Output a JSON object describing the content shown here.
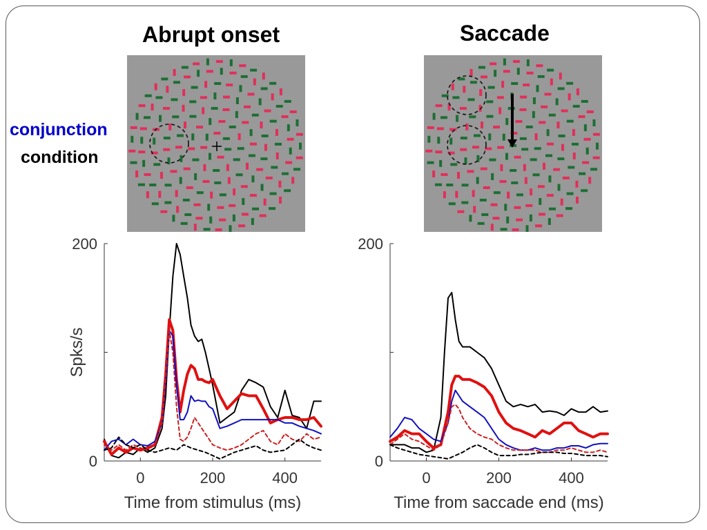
{
  "panels": [
    {
      "title": "Abrupt onset"
    },
    {
      "title": "Saccade"
    }
  ],
  "condition_label": {
    "word1": "conjunction",
    "word2": "condition",
    "word1_color": "#0000cc"
  },
  "stimulus": {
    "background": "#999999",
    "color_a": "#e0305a",
    "color_b": "#1e6e34",
    "outline": "#111111"
  },
  "chart_data": [
    {
      "type": "line",
      "title": "Abrupt onset",
      "xlabel": "Time from stimulus (ms)",
      "ylabel": "Spks/s",
      "xlim": [
        -100,
        500
      ],
      "ylim": [
        0,
        200
      ],
      "xticks": [
        0,
        200,
        400
      ],
      "yticks": [
        0,
        200
      ],
      "series": [
        {
          "color": "#000000",
          "style": "solid-thin",
          "x": [
            -100,
            -80,
            -60,
            -40,
            -20,
            0,
            20,
            40,
            60,
            70,
            80,
            90,
            100,
            110,
            120,
            130,
            140,
            150,
            160,
            170,
            180,
            190,
            200,
            220,
            240,
            260,
            280,
            300,
            320,
            340,
            360,
            380,
            400,
            420,
            440,
            460,
            480,
            500
          ],
          "y": [
            20,
            5,
            3,
            8,
            6,
            12,
            8,
            12,
            30,
            60,
            120,
            170,
            200,
            190,
            170,
            150,
            125,
            115,
            110,
            112,
            100,
            85,
            70,
            35,
            40,
            45,
            65,
            75,
            72,
            68,
            50,
            40,
            65,
            42,
            40,
            30,
            55,
            55
          ]
        },
        {
          "color": "#e01010",
          "style": "solid-thick",
          "x": [
            -100,
            -80,
            -60,
            -40,
            -20,
            0,
            20,
            40,
            60,
            70,
            80,
            90,
            100,
            110,
            120,
            130,
            140,
            150,
            160,
            170,
            180,
            190,
            200,
            220,
            240,
            260,
            280,
            300,
            320,
            340,
            360,
            380,
            400,
            420,
            440,
            460,
            480,
            500
          ],
          "y": [
            18,
            6,
            12,
            8,
            12,
            10,
            12,
            15,
            40,
            80,
            130,
            120,
            75,
            45,
            65,
            80,
            88,
            85,
            75,
            75,
            73,
            72,
            75,
            60,
            48,
            55,
            62,
            60,
            60,
            48,
            35,
            38,
            40,
            40,
            38,
            38,
            40,
            32
          ]
        },
        {
          "color": "#1010c0",
          "style": "solid-thin",
          "x": [
            -100,
            -80,
            -60,
            -40,
            -20,
            0,
            20,
            40,
            60,
            70,
            80,
            90,
            100,
            110,
            120,
            130,
            140,
            150,
            160,
            170,
            180,
            190,
            200,
            220,
            240,
            260,
            280,
            300,
            320,
            340,
            360,
            380,
            400,
            420,
            440,
            460,
            480,
            500
          ],
          "y": [
            10,
            18,
            20,
            15,
            20,
            15,
            14,
            18,
            35,
            75,
            120,
            115,
            70,
            38,
            38,
            45,
            60,
            55,
            56,
            55,
            55,
            50,
            48,
            30,
            32,
            35,
            38,
            38,
            38,
            38,
            38,
            38,
            35,
            35,
            32,
            30,
            28,
            25
          ]
        },
        {
          "color": "#cc2020",
          "style": "dashed",
          "x": [
            -100,
            -80,
            -60,
            -40,
            -20,
            0,
            20,
            40,
            60,
            70,
            80,
            90,
            100,
            110,
            120,
            130,
            140,
            150,
            160,
            170,
            180,
            190,
            200,
            220,
            240,
            260,
            280,
            300,
            320,
            340,
            360,
            380,
            400,
            420,
            440,
            460,
            480,
            500
          ],
          "y": [
            15,
            10,
            15,
            10,
            15,
            12,
            10,
            15,
            35,
            80,
            120,
            100,
            50,
            20,
            18,
            22,
            30,
            40,
            35,
            30,
            25,
            20,
            15,
            12,
            10,
            12,
            15,
            20,
            25,
            28,
            18,
            15,
            25,
            20,
            18,
            25,
            20,
            22
          ]
        },
        {
          "color": "#000000",
          "style": "dashed",
          "x": [
            -100,
            -80,
            -60,
            -40,
            -20,
            0,
            20,
            40,
            60,
            80,
            100,
            120,
            140,
            160,
            180,
            200,
            220,
            240,
            260,
            280,
            300,
            320,
            340,
            360,
            380,
            400,
            420,
            440,
            460,
            480,
            500
          ],
          "y": [
            10,
            12,
            22,
            15,
            12,
            15,
            10,
            8,
            10,
            12,
            10,
            15,
            12,
            10,
            8,
            5,
            2,
            5,
            8,
            10,
            12,
            14,
            10,
            8,
            9,
            10,
            15,
            20,
            15,
            12,
            10
          ]
        }
      ]
    },
    {
      "type": "line",
      "title": "Saccade",
      "xlabel": "Time from saccade end (ms)",
      "ylabel": "",
      "xlim": [
        -100,
        500
      ],
      "ylim": [
        0,
        200
      ],
      "xticks": [
        0,
        200,
        400
      ],
      "yticks": [
        0,
        200
      ],
      "series": [
        {
          "color": "#000000",
          "style": "solid-thin",
          "x": [
            -100,
            -80,
            -60,
            -40,
            -20,
            0,
            20,
            40,
            50,
            60,
            70,
            80,
            90,
            100,
            120,
            140,
            160,
            180,
            200,
            220,
            240,
            260,
            280,
            300,
            320,
            340,
            360,
            380,
            400,
            420,
            440,
            460,
            480,
            500
          ],
          "y": [
            15,
            15,
            15,
            12,
            12,
            8,
            10,
            40,
            100,
            150,
            155,
            130,
            110,
            105,
            105,
            100,
            95,
            85,
            70,
            55,
            50,
            52,
            50,
            52,
            45,
            46,
            45,
            42,
            48,
            45,
            45,
            50,
            45,
            46
          ]
        },
        {
          "color": "#e01010",
          "style": "solid-thick",
          "x": [
            -100,
            -80,
            -60,
            -40,
            -20,
            0,
            20,
            40,
            60,
            70,
            80,
            90,
            100,
            120,
            140,
            160,
            180,
            200,
            220,
            240,
            260,
            280,
            300,
            320,
            340,
            360,
            380,
            400,
            420,
            440,
            460,
            480,
            500
          ],
          "y": [
            18,
            22,
            28,
            25,
            25,
            18,
            12,
            15,
            45,
            70,
            78,
            78,
            75,
            75,
            72,
            68,
            60,
            45,
            35,
            30,
            28,
            25,
            22,
            28,
            25,
            30,
            35,
            35,
            28,
            25,
            22,
            25,
            25
          ]
        },
        {
          "color": "#1010c0",
          "style": "solid-thin",
          "x": [
            -100,
            -80,
            -60,
            -40,
            -20,
            0,
            20,
            40,
            60,
            70,
            80,
            90,
            100,
            120,
            140,
            160,
            180,
            200,
            220,
            240,
            260,
            280,
            300,
            320,
            340,
            360,
            380,
            400,
            420,
            440,
            460,
            480,
            500
          ],
          "y": [
            22,
            30,
            40,
            38,
            30,
            25,
            20,
            18,
            35,
            55,
            65,
            60,
            55,
            50,
            45,
            40,
            30,
            20,
            15,
            12,
            10,
            10,
            12,
            10,
            10,
            12,
            12,
            14,
            14,
            12,
            15,
            16,
            16
          ]
        },
        {
          "color": "#cc2020",
          "style": "dashed",
          "x": [
            -100,
            -80,
            -60,
            -40,
            -20,
            0,
            20,
            40,
            60,
            70,
            80,
            90,
            100,
            120,
            140,
            160,
            180,
            200,
            220,
            240,
            260,
            280,
            300,
            320,
            340,
            360,
            380,
            400,
            420,
            440,
            460,
            480,
            500
          ],
          "y": [
            15,
            20,
            25,
            20,
            18,
            14,
            10,
            15,
            35,
            50,
            52,
            48,
            40,
            30,
            25,
            22,
            20,
            15,
            12,
            10,
            10,
            10,
            10,
            8,
            8,
            10,
            10,
            12,
            10,
            8,
            8,
            10,
            8
          ]
        },
        {
          "color": "#000000",
          "style": "dashed",
          "x": [
            -100,
            -80,
            -60,
            -40,
            -20,
            0,
            20,
            40,
            60,
            80,
            100,
            120,
            140,
            160,
            180,
            200,
            220,
            240,
            260,
            280,
            300,
            320,
            340,
            360,
            380,
            400,
            420,
            440,
            460,
            480,
            500
          ],
          "y": [
            15,
            12,
            10,
            8,
            6,
            5,
            4,
            3,
            2,
            5,
            8,
            12,
            15,
            12,
            8,
            5,
            5,
            5,
            6,
            6,
            7,
            8,
            8,
            8,
            7,
            7,
            6,
            5,
            5,
            5,
            4
          ]
        }
      ]
    }
  ]
}
